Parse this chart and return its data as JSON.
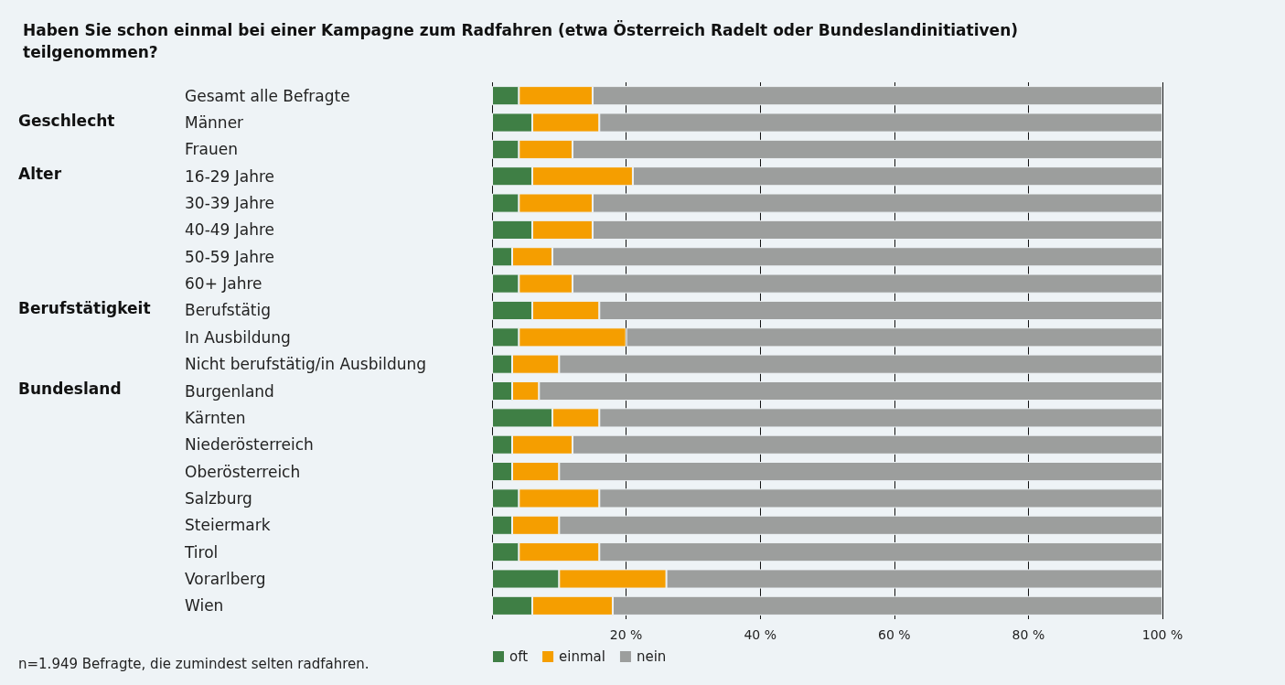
{
  "chart_data": {
    "type": "bar",
    "orientation": "horizontal",
    "stacked": true,
    "title": "Haben Sie schon einmal bei einer Kampagne zum Radfahren (etwa Österreich Radelt oder Bundeslandinitiativen) teilgenommen?",
    "categories": [
      "Gesamt alle Befragte",
      "Männer",
      "Frauen",
      "16-29 Jahre",
      "30-39 Jahre",
      "40-49 Jahre",
      "50-59 Jahre",
      "60+ Jahre",
      "Berufstätig",
      "In Ausbildung",
      "Nicht berufstätig/in Ausbildung",
      "Burgenland",
      "Kärnten",
      "Niederösterreich",
      "Oberösterreich",
      "Salzburg",
      "Steiermark",
      "Tirol",
      "Vorarlberg",
      "Wien"
    ],
    "series": [
      {
        "name": "oft",
        "color": "#3f7f45",
        "values": [
          4,
          6,
          4,
          6,
          4,
          6,
          3,
          4,
          6,
          4,
          3,
          3,
          9,
          3,
          3,
          4,
          3,
          4,
          10,
          6
        ]
      },
      {
        "name": "einmal",
        "color": "#f59e00",
        "values": [
          11,
          10,
          8,
          15,
          11,
          9,
          6,
          8,
          10,
          16,
          7,
          4,
          7,
          9,
          7,
          12,
          7,
          12,
          16,
          12
        ]
      },
      {
        "name": "nein",
        "color": "#9c9e9d",
        "values": [
          85,
          84,
          88,
          79,
          85,
          85,
          91,
          88,
          84,
          80,
          90,
          93,
          84,
          88,
          90,
          84,
          90,
          84,
          74,
          82
        ]
      }
    ],
    "xlim": [
      0,
      100
    ],
    "xticks": [
      {
        "value": 0,
        "label": null
      },
      {
        "value": 20,
        "label": "20 %"
      },
      {
        "value": 40,
        "label": "40 %"
      },
      {
        "value": 60,
        "label": "60 %"
      },
      {
        "value": 80,
        "label": "80 %"
      },
      {
        "value": 100,
        "label": "100 %"
      }
    ],
    "grid": "x",
    "legend": "bottom",
    "annotations": [
      "Geschlecht",
      "Alter",
      "Berufstätigkeit",
      "Bundesland",
      "n=1.949 Befragte, die zumindest selten radfahren."
    ]
  }
}
